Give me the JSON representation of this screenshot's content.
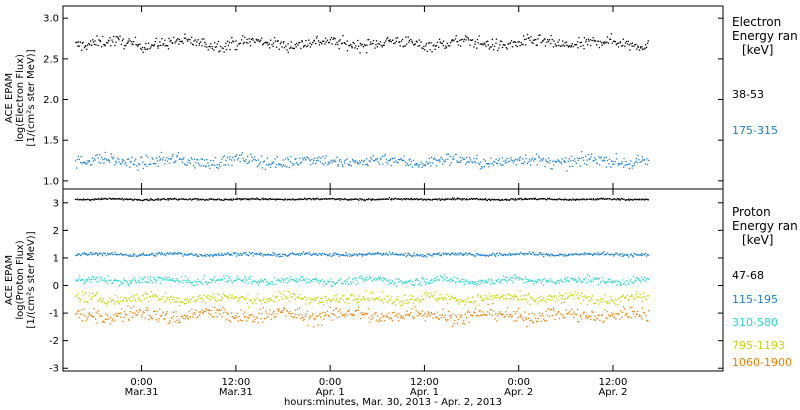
{
  "chart_data": [
    {
      "type": "scatter",
      "panel": "electron",
      "ylabel_lines": [
        "ACE EPAM",
        "log(Electron Flux)",
        "[1/(cm²s ster MeV)]"
      ],
      "ylim": [
        0.9,
        3.15
      ],
      "yticks": [
        1.0,
        1.5,
        2.0,
        2.5,
        3.0
      ],
      "ytick_labels": [
        "1.0",
        "1.5",
        "2.0",
        "2.5",
        "3.0"
      ],
      "legend_title_lines": [
        "Electron",
        "Energy ran"
      ],
      "legend_unit": "[keV]",
      "series": [
        {
          "name": "38-53",
          "color": "#000000",
          "mean": 2.7,
          "spread": 0.07
        },
        {
          "name": "175-315",
          "color": "#1a7fd6",
          "mean": 1.25,
          "spread": 0.07
        }
      ]
    },
    {
      "type": "scatter",
      "panel": "proton",
      "ylabel_lines": [
        "ACE EPAM",
        "log(Proton Flux)",
        "[1/(cm²s ster MeV)]"
      ],
      "ylim": [
        -3.1,
        3.5
      ],
      "yticks": [
        -3,
        -2,
        -1,
        0,
        1,
        2,
        3
      ],
      "ytick_labels": [
        "-3",
        "-2",
        "-1",
        "0",
        "1",
        "2",
        "3"
      ],
      "legend_title_lines": [
        "Proton",
        "Energy ran"
      ],
      "legend_unit": "[keV]",
      "series": [
        {
          "name": "47-68",
          "color": "#000000",
          "mean": 3.15,
          "spread": 0.03
        },
        {
          "name": "115-195",
          "color": "#1a7fd6",
          "mean": 1.15,
          "spread": 0.06
        },
        {
          "name": "310-580",
          "color": "#22d8d0",
          "mean": 0.2,
          "spread": 0.13
        },
        {
          "name": "795-1193",
          "color": "#c8d400",
          "mean": -0.45,
          "spread": 0.18
        },
        {
          "name": "1060-1900",
          "color": "#f07d00",
          "mean": -1.05,
          "spread": 0.25
        }
      ]
    }
  ],
  "x_axis": {
    "title": "hours:minutes, Mar. 30, 2013 - Apr.  2, 2013",
    "ticks": [
      {
        "time": "Mar. 31 00:00",
        "hh": 24,
        "top": "0:00",
        "bottom": "Mar.31"
      },
      {
        "time": "Mar. 31 12:00",
        "hh": 36,
        "top": "12:00",
        "bottom": "Mar.31"
      },
      {
        "time": "Apr. 1 00:00",
        "hh": 48,
        "top": "0:00",
        "bottom": "Apr. 1"
      },
      {
        "time": "Apr. 1 12:00",
        "hh": 60,
        "top": "12:00",
        "bottom": "Apr. 1"
      },
      {
        "time": "Apr. 2 00:00",
        "hh": 72,
        "top": "0:00",
        "bottom": "Apr. 2"
      },
      {
        "time": "Apr. 2 12:00",
        "hh": 84,
        "top": "12:00",
        "bottom": "Apr. 2"
      }
    ]
  }
}
